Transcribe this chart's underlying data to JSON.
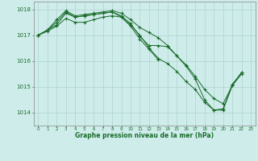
{
  "xlabel": "Graphe pression niveau de la mer (hPa)",
  "bg_color": "#ceecea",
  "grid_color": "#aed4d0",
  "line_color": "#1a6b2a",
  "ylim": [
    1013.5,
    1018.3
  ],
  "yticks": [
    1014,
    1015,
    1016,
    1017,
    1018
  ],
  "xticks": [
    0,
    1,
    2,
    3,
    4,
    5,
    6,
    7,
    8,
    9,
    10,
    11,
    12,
    13,
    14,
    15,
    16,
    17,
    18,
    19,
    20,
    21,
    22,
    23
  ],
  "series1_x": [
    0,
    1,
    2,
    3,
    4,
    5,
    6,
    7,
    8,
    9,
    10,
    11,
    12,
    13,
    14,
    15,
    16,
    17,
    18,
    19,
    20,
    21,
    22
  ],
  "series1_y": [
    1017.0,
    1017.2,
    1017.4,
    1017.85,
    1017.7,
    1017.75,
    1017.8,
    1017.85,
    1017.9,
    1017.75,
    1017.45,
    1016.95,
    1016.6,
    1016.6,
    1016.55,
    1016.2,
    1015.85,
    1015.4,
    1014.9,
    1014.55,
    1014.35,
    1015.05,
    1015.55
  ],
  "series2_x": [
    0,
    1,
    2,
    3,
    4,
    5,
    6,
    7,
    8,
    9,
    10,
    11,
    12,
    13
  ],
  "series2_y": [
    1017.0,
    1017.2,
    1017.5,
    1017.9,
    1017.7,
    1017.75,
    1017.8,
    1017.85,
    1017.9,
    1017.7,
    1017.35,
    1016.85,
    1016.45,
    1016.05
  ],
  "series3_x": [
    0,
    1,
    2,
    3,
    4,
    5,
    6,
    7,
    8,
    9,
    10,
    11,
    12,
    13,
    14,
    15,
    16,
    17,
    18,
    19,
    20,
    21,
    22
  ],
  "series3_y": [
    1017.0,
    1017.2,
    1017.6,
    1017.95,
    1017.75,
    1017.8,
    1017.85,
    1017.9,
    1017.95,
    1017.85,
    1017.6,
    1017.3,
    1017.1,
    1016.9,
    1016.6,
    1016.2,
    1015.8,
    1015.3,
    1014.5,
    1014.1,
    1014.15,
    1015.1,
    1015.55
  ],
  "series4_x": [
    0,
    1,
    2,
    3,
    4,
    5,
    6,
    7,
    8,
    9,
    10,
    11,
    12,
    13,
    14,
    15,
    16,
    17,
    18,
    19,
    20,
    21,
    22
  ],
  "series4_y": [
    1017.0,
    1017.15,
    1017.35,
    1017.65,
    1017.5,
    1017.5,
    1017.6,
    1017.7,
    1017.75,
    1017.7,
    1017.4,
    1017.0,
    1016.5,
    1016.1,
    1015.9,
    1015.6,
    1015.2,
    1014.9,
    1014.4,
    1014.1,
    1014.1,
    1015.05,
    1015.5
  ]
}
